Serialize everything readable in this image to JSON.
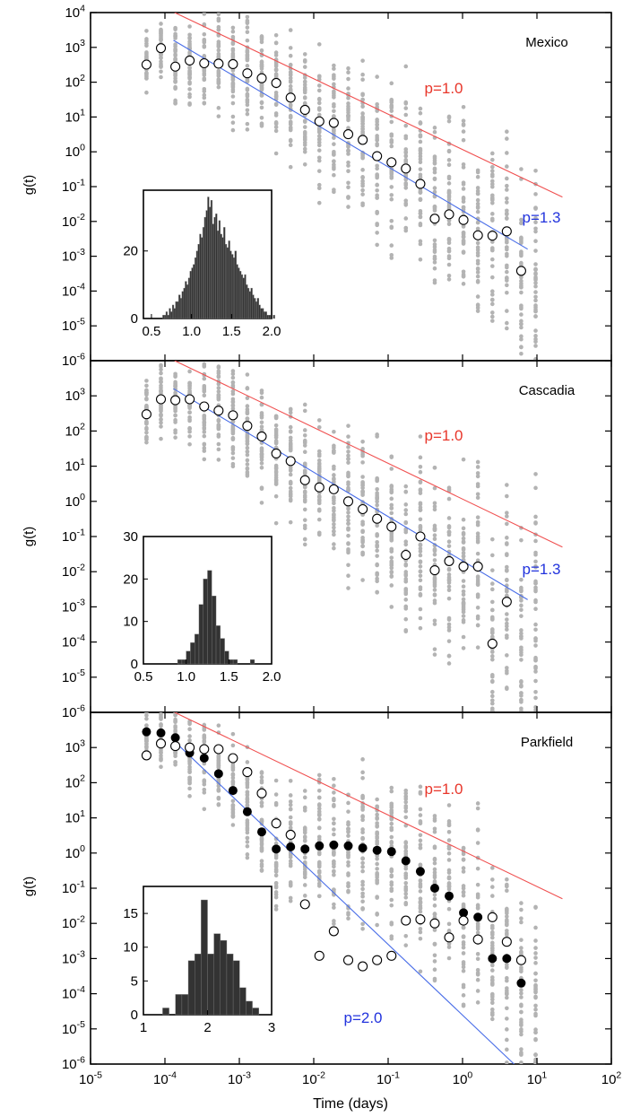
{
  "figure": {
    "x_label": "Time (days)",
    "x_ticks": [
      "10",
      "10",
      "10",
      "10",
      "10",
      "10",
      "10",
      "10"
    ],
    "x_tick_exponents": [
      "-5",
      "-4",
      "-3",
      "-2",
      "-1",
      "0",
      "1",
      "2"
    ],
    "y_label": "g(t)",
    "y_ticks_base": "10",
    "y_tick_exponents": [
      "-6",
      "-5",
      "-4",
      "-3",
      "-2",
      "-1",
      "0",
      "1",
      "2",
      "3",
      "4"
    ],
    "colors": {
      "scatter_gray": "#b3b3b3",
      "reference_line": "#f05050",
      "fit_line": "#4a6ee8",
      "reference_label": "#e8362a",
      "fit_label": "#2233dd",
      "histogram_bar": "#333333"
    }
  },
  "chart_data": [
    {
      "type": "scatter",
      "region_label": "Mexico",
      "xscale": "log",
      "yscale": "log",
      "xlim": [
        1e-05,
        100
      ],
      "ylim": [
        1e-06,
        10000
      ],
      "grid": false,
      "x": [
        5.65e-05,
        8.83e-05,
        0.000138,
        0.000215,
        0.000337,
        0.000526,
        0.000821,
        0.00128,
        0.002,
        0.00313,
        0.00489,
        0.00763,
        0.0119,
        0.0186,
        0.0291,
        0.0455,
        0.071,
        0.111,
        0.173,
        0.271,
        0.423,
        0.66,
        1.03,
        1.61,
        2.52,
        3.93,
        6.14,
        9.6
      ],
      "mean_g": [
        320,
        950,
        280,
        420,
        350,
        340,
        330,
        180,
        130,
        95,
        36,
        16,
        7.5,
        6.8,
        3.2,
        2.2,
        0.75,
        0.5,
        0.33,
        0.12,
        0.012,
        0.016,
        0.011,
        0.004,
        0.0039,
        0.0052,
        0.00038,
        null
      ],
      "mean_marker": "open-circle",
      "ensemble_marker": "gray-dot",
      "reference_line": {
        "label": "p=1.0",
        "p": 1.0,
        "x_range": [
          0.000135,
          22
        ],
        "y_at_start": 10000,
        "y_at_end": 0.05
      },
      "fit_line": {
        "label": "p=1.3",
        "p": 1.3,
        "x_range": [
          0.00013,
          7.5
        ],
        "y_at_start": 1600,
        "y_at_end": 0.0016
      },
      "inset_histogram": {
        "type": "bar",
        "xlim": [
          0.4,
          2.0
        ],
        "ylim": [
          0,
          38
        ],
        "x_ticks": [
          "0.5",
          "1.0",
          "1.5",
          "2.0"
        ],
        "y_ticks": [
          "0",
          "20"
        ],
        "bin_width": 0.02,
        "bin_start": 0.5,
        "values": [
          0,
          0,
          0,
          0,
          0,
          0,
          0,
          1,
          1,
          2,
          1,
          3,
          2,
          4,
          3,
          5,
          5,
          7,
          6,
          8,
          9,
          11,
          10,
          12,
          14,
          15,
          16,
          18,
          20,
          22,
          25,
          24,
          27,
          30,
          32,
          36,
          33,
          35,
          28,
          30,
          31,
          26,
          29,
          25,
          24,
          27,
          22,
          21,
          23,
          20,
          19,
          18,
          20,
          16,
          15,
          14,
          13,
          12,
          13,
          10,
          9,
          8,
          9,
          7,
          6,
          5,
          6,
          4,
          3,
          3,
          2,
          2,
          1,
          1,
          1,
          0,
          1,
          0,
          0,
          0
        ]
      }
    },
    {
      "type": "scatter",
      "region_label": "Cascadia",
      "xscale": "log",
      "yscale": "log",
      "xlim": [
        1e-05,
        100
      ],
      "ylim": [
        1e-06,
        10000
      ],
      "grid": false,
      "x": [
        5.65e-05,
        8.83e-05,
        0.000138,
        0.000215,
        0.000337,
        0.000526,
        0.000821,
        0.00128,
        0.002,
        0.00313,
        0.00489,
        0.00763,
        0.0119,
        0.0186,
        0.0291,
        0.0455,
        0.071,
        0.111,
        0.173,
        0.271,
        0.423,
        0.66,
        1.03,
        1.61,
        2.52,
        3.93,
        6.14,
        9.6
      ],
      "mean_g": [
        300,
        800,
        750,
        800,
        500,
        380,
        280,
        140,
        70,
        23,
        14,
        4,
        2.5,
        2.2,
        1,
        0.6,
        0.32,
        0.19,
        0.03,
        0.1,
        0.011,
        0.02,
        0.014,
        0.014,
        9e-05,
        0.0014,
        null,
        null
      ],
      "mean_marker": "open-circle",
      "ensemble_marker": "gray-dot",
      "reference_line": {
        "label": "p=1.0",
        "p": 1.0,
        "x_range": [
          0.000135,
          22
        ],
        "y_at_start": 10000,
        "y_at_end": 0.05
      },
      "fit_line": {
        "label": "p=1.3",
        "p": 1.3,
        "x_range": [
          0.00013,
          7.5
        ],
        "y_at_start": 1600,
        "y_at_end": 0.0016
      },
      "inset_histogram": {
        "type": "bar",
        "xlim": [
          0.5,
          2.0
        ],
        "ylim": [
          0,
          30
        ],
        "x_ticks": [
          "0.5",
          "1.0",
          "1.5",
          "2.0"
        ],
        "y_ticks": [
          "0",
          "10",
          "20",
          "30"
        ],
        "bin_width": 0.05,
        "bin_start": 0.9,
        "values": [
          1,
          1,
          3,
          5,
          7,
          14,
          20,
          22,
          16,
          9,
          6,
          3,
          1,
          1,
          0,
          0,
          0,
          1
        ]
      }
    },
    {
      "type": "scatter",
      "region_label": "Parkfield",
      "xscale": "log",
      "yscale": "log",
      "xlim": [
        1e-05,
        100
      ],
      "ylim": [
        1e-06,
        10000
      ],
      "grid": false,
      "x": [
        5.65e-05,
        8.83e-05,
        0.000138,
        0.000215,
        0.000337,
        0.000526,
        0.000821,
        0.00128,
        0.002,
        0.00313,
        0.00489,
        0.00763,
        0.0119,
        0.0186,
        0.0291,
        0.0455,
        0.071,
        0.111,
        0.173,
        0.271,
        0.423,
        0.66,
        1.03,
        1.61,
        2.52,
        3.93,
        6.14,
        9.6
      ],
      "filled_g": [
        2800,
        2600,
        1900,
        700,
        500,
        180,
        60,
        15,
        4,
        1.3,
        1.5,
        1.3,
        1.6,
        1.7,
        1.6,
        1.4,
        1.2,
        1.1,
        0.6,
        0.3,
        0.1,
        0.06,
        0.02,
        0.015,
        0.001,
        0.001,
        0.0002,
        null
      ],
      "open_g": [
        600,
        1300,
        1100,
        1000,
        900,
        900,
        500,
        200,
        50,
        7,
        3.3,
        0.035,
        0.0012,
        0.006,
        0.0009,
        0.0006,
        0.0009,
        0.0012,
        0.012,
        0.013,
        0.01,
        0.004,
        0.012,
        0.0035,
        0.015,
        0.003,
        0.0009,
        null
      ],
      "filled_marker": "filled-circle",
      "open_marker": "open-circle",
      "ensemble_marker": "gray-dot",
      "reference_line": {
        "label": "p=1.0",
        "p": 1.0,
        "x_range": [
          0.000135,
          22
        ],
        "y_at_start": 10000,
        "y_at_end": 0.05
      },
      "fit_line": {
        "label": "p=2.0",
        "p": 2.0,
        "x_range": [
          0.00013,
          5.5
        ],
        "y_at_start": 1600,
        "y_at_end": 8e-07
      },
      "inset_histogram": {
        "type": "bar",
        "xlim": [
          1,
          3
        ],
        "ylim": [
          0,
          19
        ],
        "x_ticks": [
          "1",
          "2",
          "3"
        ],
        "y_ticks": [
          "0",
          "5",
          "10",
          "15"
        ],
        "bin_width": 0.1,
        "bin_start": 1.3,
        "values": [
          1,
          0,
          3,
          3,
          8,
          9,
          17,
          9,
          12,
          11,
          9,
          8,
          4,
          2,
          1
        ]
      }
    }
  ]
}
